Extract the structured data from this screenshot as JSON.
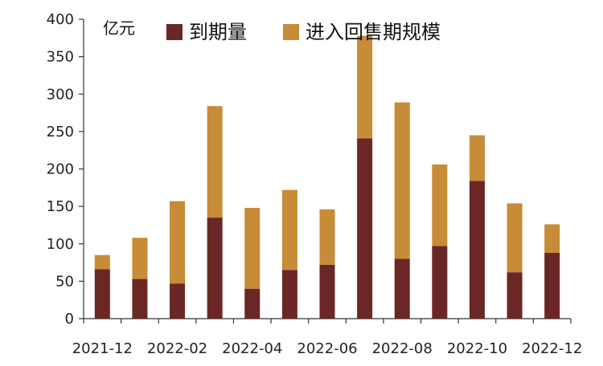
{
  "chart_data": {
    "type": "bar",
    "stacked": true,
    "unit": "亿元",
    "categories": [
      "2021-12",
      "2022-01",
      "2022-02",
      "2022-03",
      "2022-04",
      "2022-05",
      "2022-06",
      "2022-07",
      "2022-08",
      "2022-09",
      "2022-10",
      "2022-11",
      "2022-12"
    ],
    "x_tick_labels": [
      "2021-12",
      "2022-02",
      "2022-04",
      "2022-06",
      "2022-08",
      "2022-10",
      "2022-12"
    ],
    "series": [
      {
        "name": "到期量",
        "color": "#6b2626",
        "values": [
          66,
          53,
          47,
          135,
          40,
          65,
          72,
          241,
          80,
          97,
          184,
          62,
          88
        ]
      },
      {
        "name": "进入回售期规模",
        "color": "#c88b37",
        "values": [
          19,
          55,
          110,
          149,
          108,
          107,
          74,
          137,
          209,
          109,
          61,
          92,
          38
        ]
      }
    ],
    "ylim": [
      0,
      400
    ],
    "yticks": [
      0,
      50,
      100,
      150,
      200,
      250,
      300,
      350,
      400
    ],
    "legend_position": "top"
  }
}
